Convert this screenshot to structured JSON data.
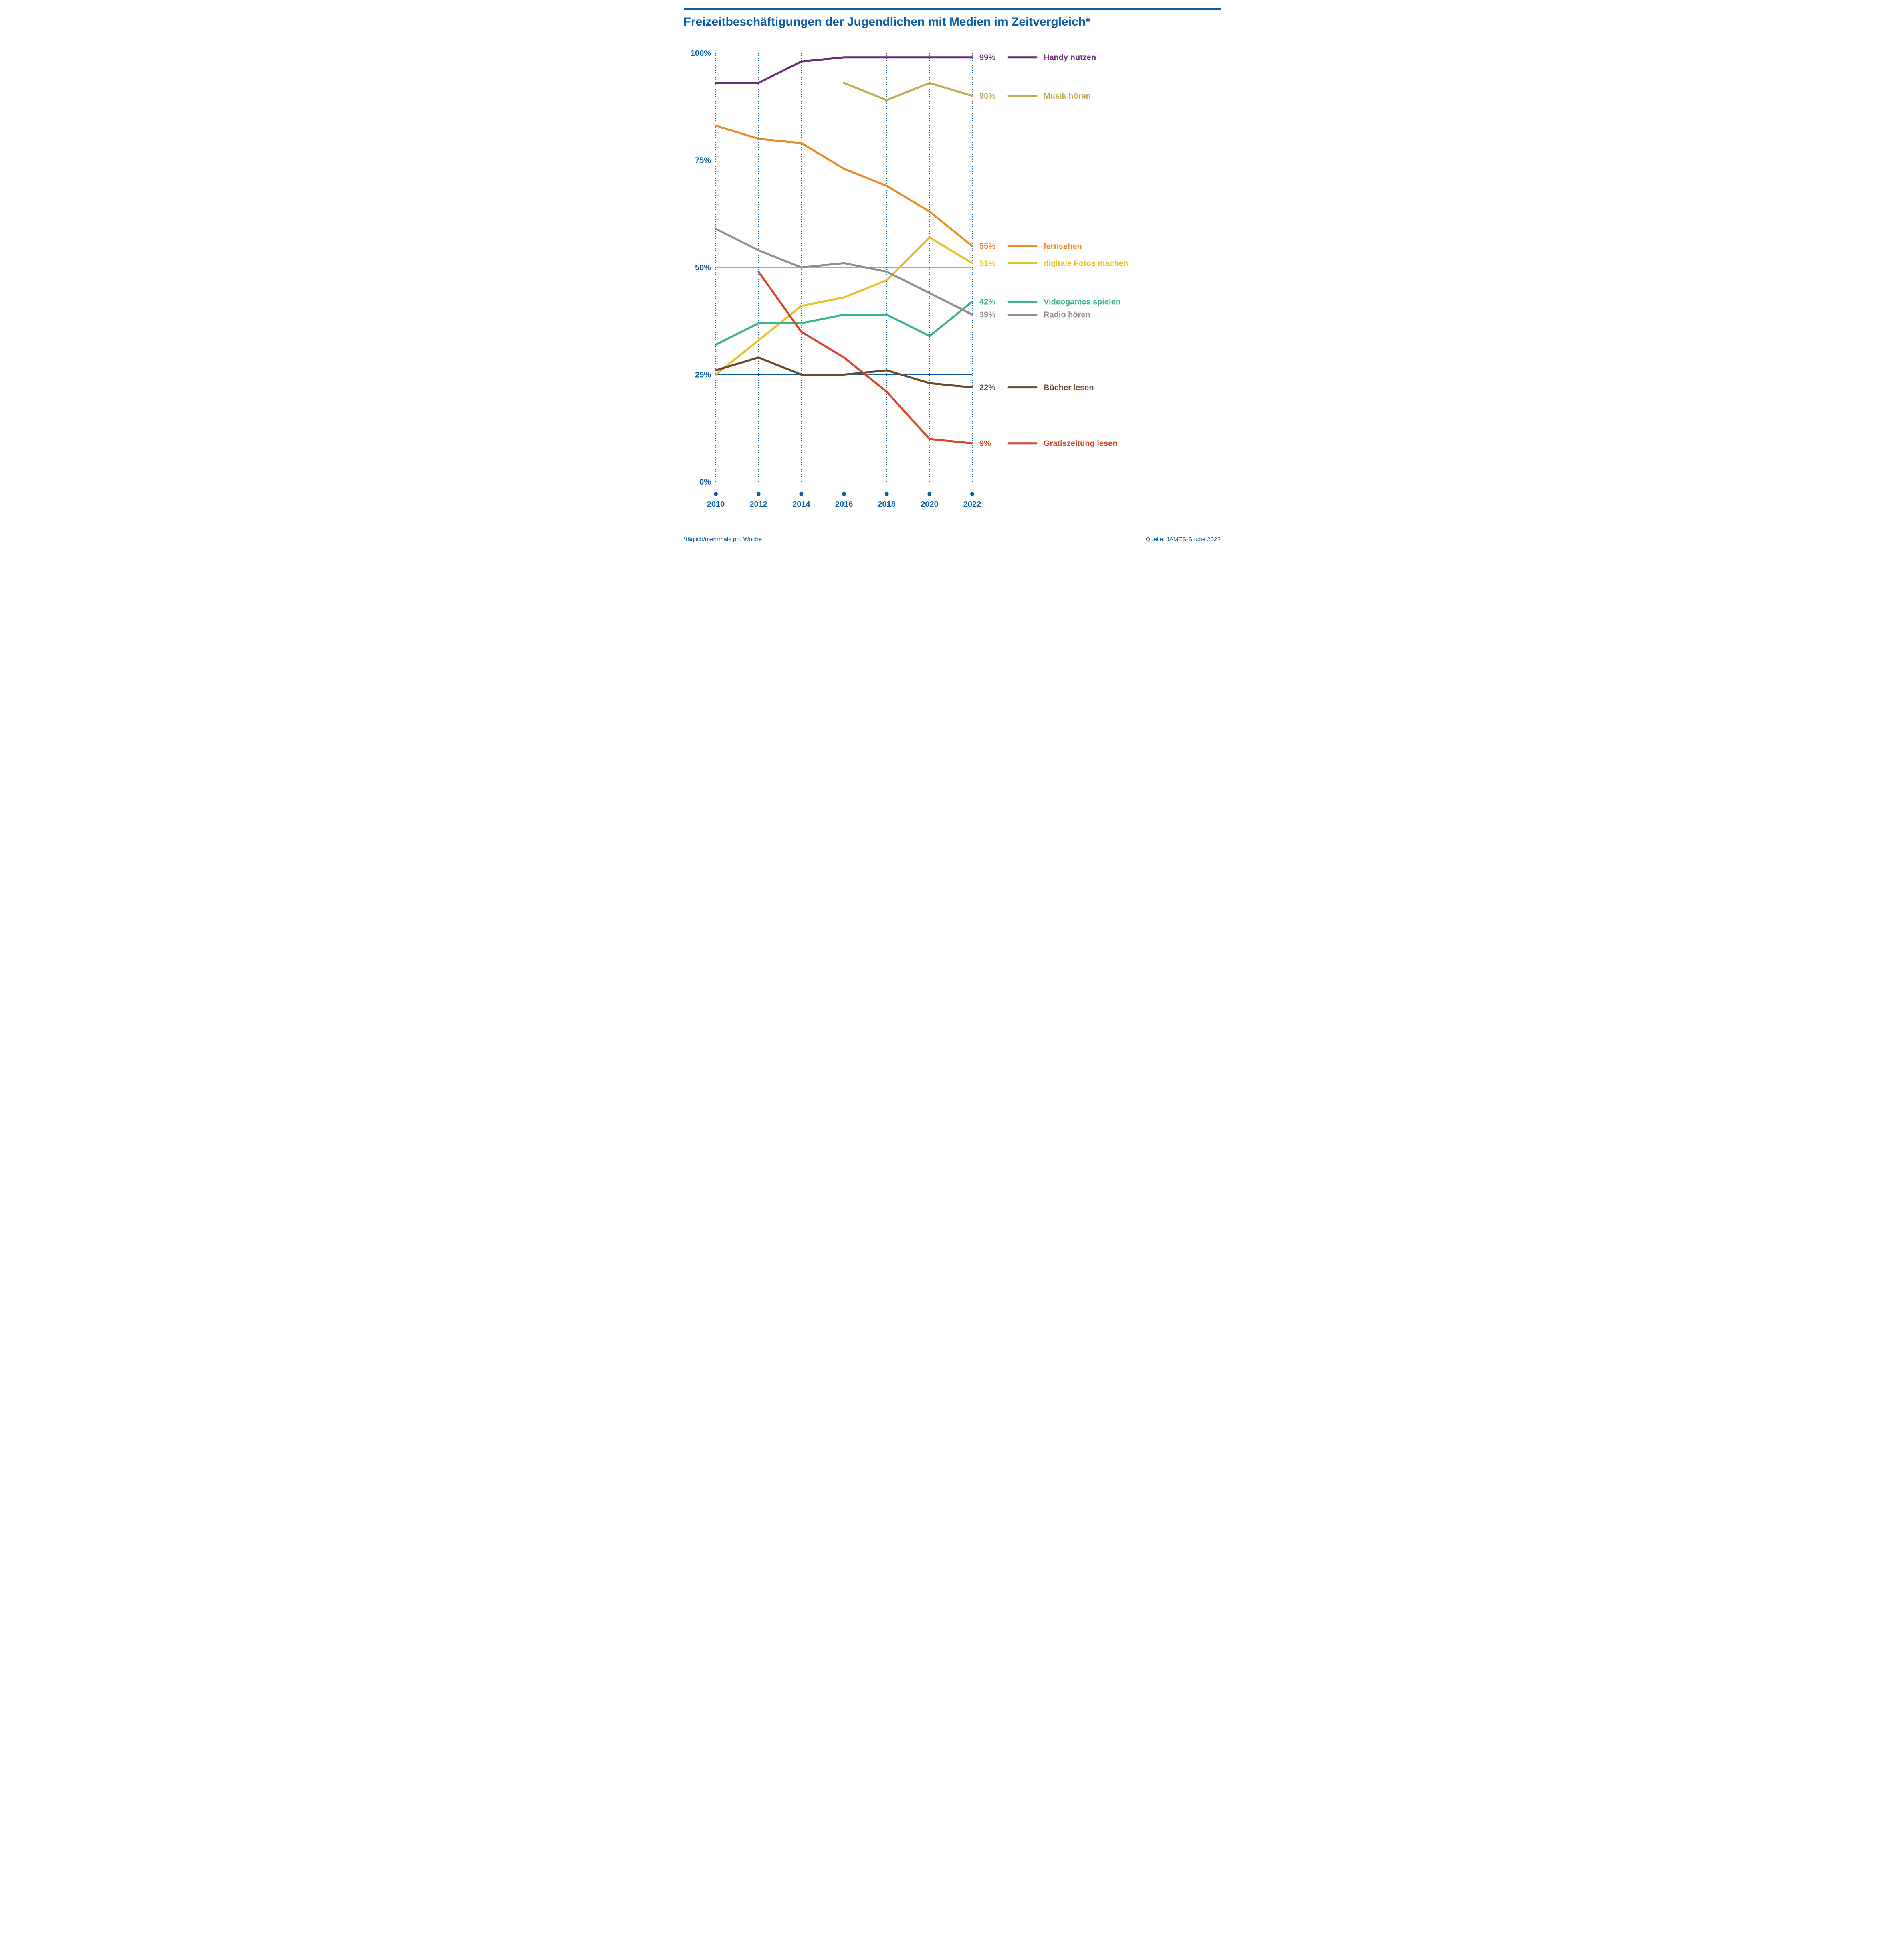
{
  "title": "Freizeitbeschäftigungen der Jugendlichen mit Medien im Zeitvergleich*",
  "footnote_left": "*täglich/mehrmals pro Woche",
  "footnote_right": "Quelle: JAMES-Studie 2022",
  "chart": {
    "type": "line",
    "years": [
      2010,
      2012,
      2014,
      2016,
      2018,
      2020,
      2022
    ],
    "ylim": [
      0,
      100
    ],
    "ytick_step": 25,
    "ytick_labels": [
      "0%",
      "25%",
      "50%",
      "75%",
      "100%"
    ],
    "axis_color": "#0a5ca5",
    "grid_color": "#0a5ca5",
    "grid_dash": "2,4",
    "background_color": "#ffffff",
    "line_width": 5,
    "label_fontsize": 20,
    "legend_fontsize": 20,
    "value_fontsize": 20,
    "series": [
      {
        "name": "Handy nutzen",
        "color": "#6b2a7a",
        "end_label": "99%",
        "values": [
          93,
          93,
          98,
          99,
          99,
          99,
          99
        ]
      },
      {
        "name": "Musik hören",
        "color": "#c2aa4e",
        "end_label": "90%",
        "values": [
          null,
          null,
          null,
          93,
          89,
          93,
          90
        ]
      },
      {
        "name": "fernsehen",
        "color": "#e98b2a",
        "end_label": "55%",
        "values": [
          83,
          80,
          79,
          73,
          69,
          63,
          55
        ]
      },
      {
        "name": "digitale Fotos machen",
        "color": "#e9c02a",
        "end_label": "51%",
        "values": [
          25,
          33,
          41,
          43,
          47,
          57,
          51
        ]
      },
      {
        "name": "Videogames spielen",
        "color": "#3bb48c",
        "end_label": "42%",
        "values": [
          32,
          37,
          37,
          39,
          39,
          34,
          42
        ]
      },
      {
        "name": "Radio hören",
        "color": "#8e8e8e",
        "end_label": "39%",
        "values": [
          59,
          54,
          50,
          51,
          49,
          44,
          39
        ]
      },
      {
        "name": "Bücher lesen",
        "color": "#6b4a2a",
        "end_label": "22%",
        "values": [
          26,
          29,
          25,
          25,
          26,
          23,
          22
        ]
      },
      {
        "name": "Gratiszeitung lesen",
        "color": "#d6452a",
        "end_label": "9%",
        "values": [
          null,
          49,
          35,
          29,
          21,
          10,
          9
        ]
      }
    ],
    "legend_y_positions": {
      "Handy nutzen": 99,
      "Musik hören": 90,
      "fernsehen": 55,
      "digitale Fotos machen": 51,
      "Videogames spielen": 42,
      "Radio hören": 39,
      "Bücher lesen": 22,
      "Gratiszeitung lesen": 9
    }
  }
}
